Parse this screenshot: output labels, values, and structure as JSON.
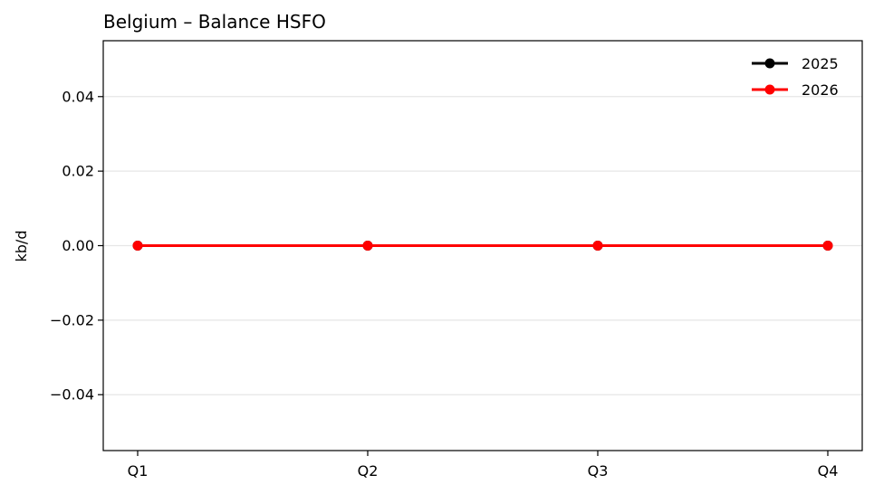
{
  "chart_data": {
    "type": "line",
    "title": "Belgium – Balance HSFO",
    "xlabel": "",
    "ylabel": "kb/d",
    "categories": [
      "Q1",
      "Q2",
      "Q3",
      "Q4"
    ],
    "ylim": [
      -0.055,
      0.055
    ],
    "yticks": [
      -0.04,
      -0.02,
      0.0,
      0.02,
      0.04
    ],
    "ytick_labels": [
      "−0.04",
      "−0.02",
      "0.00",
      "0.02",
      "0.04"
    ],
    "grid": "horizontal",
    "legend_position": "top-right",
    "series": [
      {
        "name": "2025",
        "color": "#000000",
        "marker": "circle",
        "values": [
          0,
          0,
          0,
          0
        ]
      },
      {
        "name": "2026",
        "color": "#ff0000",
        "marker": "circle",
        "values": [
          0,
          0,
          0,
          0
        ]
      }
    ]
  }
}
